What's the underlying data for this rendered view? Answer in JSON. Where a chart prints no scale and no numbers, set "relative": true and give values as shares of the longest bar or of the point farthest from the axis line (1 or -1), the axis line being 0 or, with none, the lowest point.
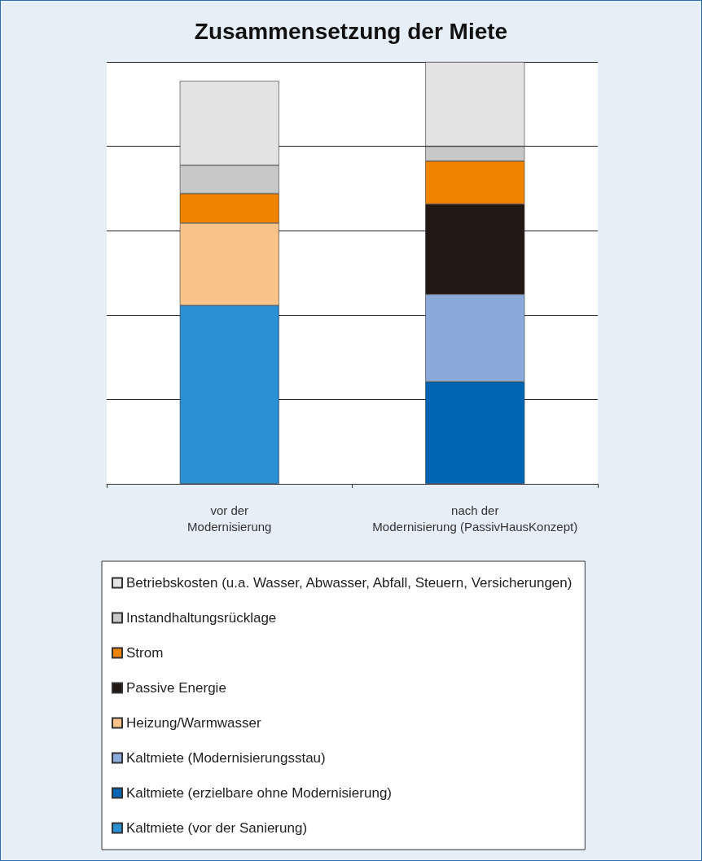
{
  "chart_data": {
    "type": "bar",
    "title": "Zusammensetzung der Miete",
    "relative": true,
    "stacked": true,
    "grid": "y",
    "legend": "bottom",
    "categories": [
      "vor der\nModernisierung",
      "nach der\nModernisierung (PassivHausKonzept)"
    ],
    "series": [
      {
        "name": "Kaltmiete (vor der Sanierung)",
        "color": "#2b8fd4",
        "values": [
          0.423,
          null
        ]
      },
      {
        "name": "Kaltmiete (erzielbare ohne Modernisierung)",
        "color": "#0066b3",
        "values": [
          null,
          0.242
        ]
      },
      {
        "name": "Kaltmiete (Modernisierungsstau)",
        "color": "#8aabd9",
        "values": [
          null,
          0.207
        ]
      },
      {
        "name": "Heizung/Warmwasser",
        "color": "#f8c48a",
        "values": [
          0.195,
          null
        ]
      },
      {
        "name": "Passive Energie",
        "color": "#231815",
        "values": [
          null,
          0.214
        ]
      },
      {
        "name": "Strom",
        "color": "#f08300",
        "values": [
          0.07,
          0.102
        ]
      },
      {
        "name": "Instandhaltungsrücklage",
        "color": "#c8c8c8",
        "values": [
          0.067,
          0.035
        ]
      },
      {
        "name": "Betriebskosten (u.a. Wasser, Abwasser, Abfall, Steuern, Versicherungen)",
        "color": "#e3e3e3",
        "values": [
          0.2,
          0.2
        ]
      }
    ]
  }
}
